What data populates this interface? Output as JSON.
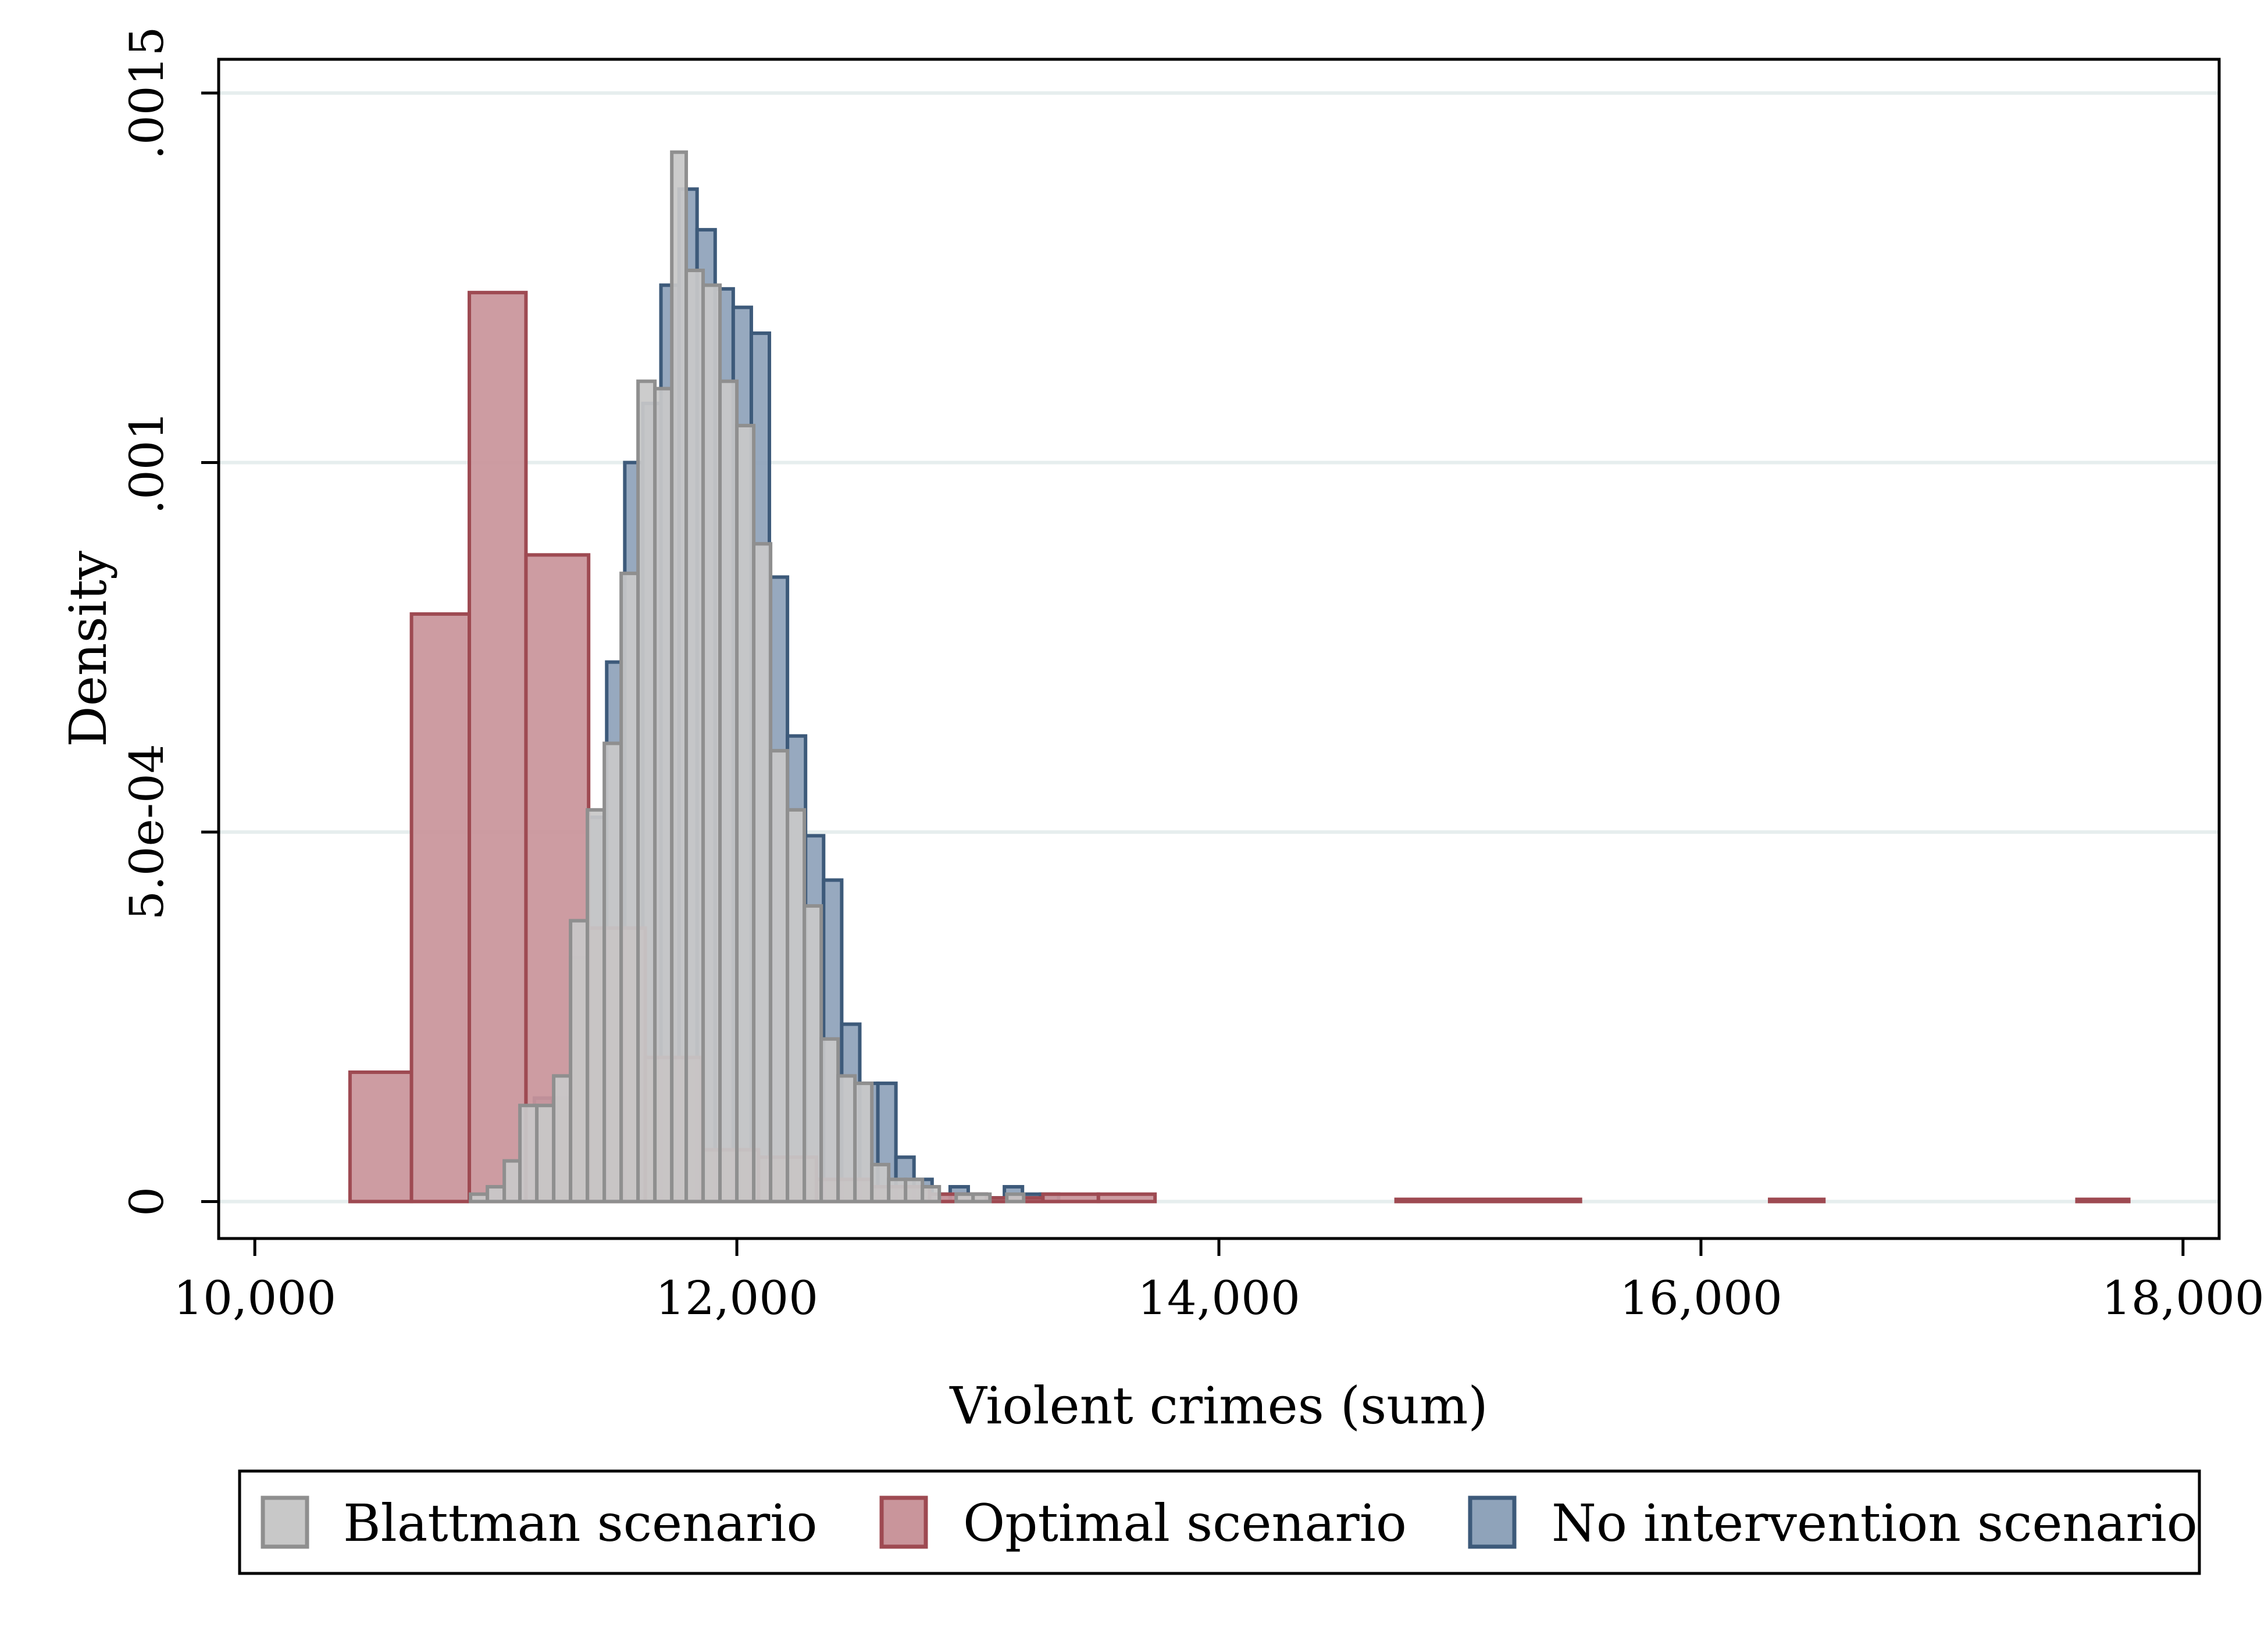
{
  "chart_data": {
    "type": "bar",
    "title": "",
    "xlabel": "Violent crimes (sum)",
    "ylabel": "Density",
    "xlim": [
      9850,
      18150
    ],
    "ylim": [
      -5e-05,
      0.0015
    ],
    "x_ticks": [
      10000,
      12000,
      14000,
      16000,
      18000
    ],
    "x_tick_labels": [
      "10,000",
      "12,000",
      "14,000",
      "16,000",
      "18,000"
    ],
    "y_ticks": [
      0,
      0.0005,
      0.001,
      0.0015
    ],
    "y_tick_labels": [
      "0",
      "5.0e-04",
      ".001",
      ".0015"
    ],
    "grid": "horizontal",
    "legend_position": "bottom",
    "series": [
      {
        "name": "No intervention scenario",
        "fill": "#8FA3BA",
        "stroke": "#3D5A7A",
        "bins": [
          [
            11160,
            11235,
            0.00014
          ],
          [
            11235,
            11310,
            0.00014
          ],
          [
            11310,
            11385,
            0.00033
          ],
          [
            11385,
            11460,
            0.00052
          ],
          [
            11460,
            11535,
            0.00073
          ],
          [
            11535,
            11610,
            0.001
          ],
          [
            11610,
            11685,
            0.00108
          ],
          [
            11685,
            11760,
            0.00124
          ],
          [
            11760,
            11835,
            0.00137
          ],
          [
            11835,
            11910,
            0.001315
          ],
          [
            11910,
            11985,
            0.001235
          ],
          [
            11985,
            12060,
            0.00121
          ],
          [
            12060,
            12135,
            0.001175
          ],
          [
            12135,
            12210,
            0.000845
          ],
          [
            12210,
            12285,
            0.00063
          ],
          [
            12285,
            12360,
            0.000495
          ],
          [
            12360,
            12435,
            0.000435
          ],
          [
            12435,
            12510,
            0.00024
          ],
          [
            12510,
            12585,
            0.00016
          ],
          [
            12585,
            12660,
            0.00016
          ],
          [
            12660,
            12735,
            6e-05
          ],
          [
            12735,
            12810,
            3e-05
          ],
          [
            12810,
            12885,
            1e-05
          ],
          [
            12885,
            12960,
            2e-05
          ],
          [
            12960,
            13035,
            1e-05
          ],
          [
            13035,
            13110,
            5e-06
          ],
          [
            13110,
            13185,
            2e-05
          ],
          [
            13185,
            13260,
            1e-05
          ],
          [
            13260,
            13335,
            1e-05
          ]
        ]
      },
      {
        "name": "Optimal scenario",
        "fill": "#C9959B",
        "stroke": "#9E4A52",
        "bins": [
          [
            10395,
            10650,
            0.000175
          ],
          [
            10650,
            10890,
            0.000795
          ],
          [
            10890,
            11125,
            0.00123
          ],
          [
            11125,
            11385,
            0.000875
          ],
          [
            11385,
            11620,
            0.00037
          ],
          [
            11620,
            11855,
            0.000195
          ],
          [
            11855,
            12090,
            7e-05
          ],
          [
            12090,
            12330,
            6e-05
          ],
          [
            12330,
            12560,
            3e-05
          ],
          [
            12560,
            12800,
            2e-05
          ],
          [
            12800,
            13035,
            1e-05
          ],
          [
            13035,
            13270,
            5e-06
          ],
          [
            13270,
            13500,
            1e-05
          ],
          [
            13500,
            13735,
            1e-05
          ],
          [
            14735,
            15500,
            3e-06
          ],
          [
            16285,
            16510,
            3e-06
          ],
          [
            17560,
            17775,
            3e-06
          ]
        ]
      },
      {
        "name": "Blattman scenario",
        "fill": "#C8C8C8",
        "stroke": "#8F8F8F",
        "bins": [
          [
            10895,
            10965,
            1e-05
          ],
          [
            10965,
            11035,
            2e-05
          ],
          [
            11035,
            11100,
            5.5e-05
          ],
          [
            11100,
            11170,
            0.00013
          ],
          [
            11170,
            11240,
            0.00013
          ],
          [
            11240,
            11310,
            0.00017
          ],
          [
            11310,
            11380,
            0.00038
          ],
          [
            11380,
            11450,
            0.00053
          ],
          [
            11450,
            11520,
            0.00062
          ],
          [
            11520,
            11590,
            0.00085
          ],
          [
            11590,
            11660,
            0.00111
          ],
          [
            11660,
            11730,
            0.0011
          ],
          [
            11730,
            11790,
            0.00142
          ],
          [
            11790,
            11860,
            0.00126
          ],
          [
            11860,
            11930,
            0.00124
          ],
          [
            11930,
            12000,
            0.00111
          ],
          [
            12000,
            12070,
            0.00105
          ],
          [
            12070,
            12140,
            0.00089
          ],
          [
            12140,
            12210,
            0.00061
          ],
          [
            12210,
            12280,
            0.00053
          ],
          [
            12280,
            12350,
            0.0004
          ],
          [
            12350,
            12420,
            0.00022
          ],
          [
            12420,
            12490,
            0.00017
          ],
          [
            12490,
            12560,
            0.00016
          ],
          [
            12560,
            12630,
            5e-05
          ],
          [
            12630,
            12700,
            3e-05
          ],
          [
            12700,
            12770,
            3e-05
          ],
          [
            12770,
            12840,
            2e-05
          ],
          [
            12910,
            12980,
            1e-05
          ],
          [
            12980,
            13050,
            1e-05
          ],
          [
            13120,
            13190,
            1e-05
          ]
        ]
      }
    ],
    "legend_order": [
      "Blattman scenario",
      "Optimal scenario",
      "No intervention scenario"
    ]
  }
}
